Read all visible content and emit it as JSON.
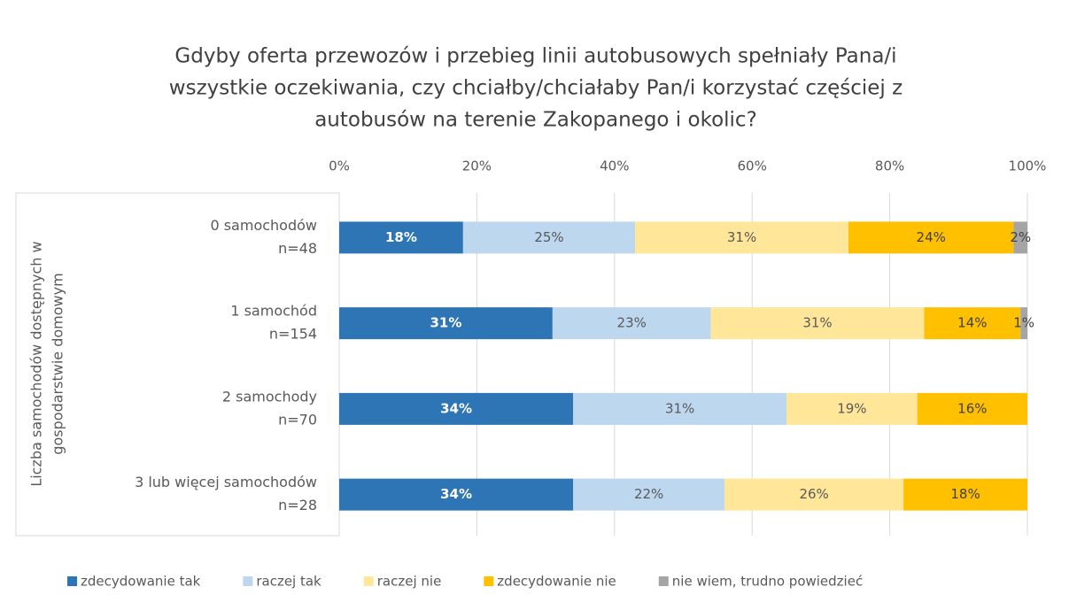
{
  "chart_data": {
    "type": "stacked-barh",
    "title": [
      "Gdyby oferta przewozów i przebieg linii autobusowych spełniały Pana/i",
      "wszystkie oczekiwania, czy chciałby/chciałaby Pan/i korzystać częściej z",
      "autobusów na terenie Zakopanego i okolic?"
    ],
    "y_label": [
      "Liczba samochodów dostępnych w",
      "gospodarstwie domowym"
    ],
    "categories": [
      [
        "0 samochodów",
        "n=48"
      ],
      [
        "1 samochód",
        "n=154"
      ],
      [
        "2 samochody",
        "n=70"
      ],
      [
        "3 lub więcej samochodów",
        "n=28"
      ]
    ],
    "series": [
      {
        "name": "zdecydowanie tak",
        "color": "#2e75b6",
        "label_color": "#ffffff",
        "values": [
          18,
          31,
          34,
          34
        ],
        "value_labels": [
          "18%",
          "31%",
          "34%",
          "34%"
        ]
      },
      {
        "name": "raczej tak",
        "color": "#bdd7ee",
        "label_color": "#595959",
        "values": [
          25,
          23,
          31,
          22
        ],
        "value_labels": [
          "25%",
          "23%",
          "31%",
          "22%"
        ]
      },
      {
        "name": "raczej nie",
        "color": "#ffe699",
        "label_color": "#595959",
        "values": [
          31,
          31,
          19,
          26
        ],
        "value_labels": [
          "31%",
          "31%",
          "19%",
          "26%"
        ]
      },
      {
        "name": "zdecydowanie nie",
        "color": "#ffc000",
        "label_color": "#404040",
        "values": [
          24,
          14,
          16,
          18
        ],
        "value_labels": [
          "24%",
          "14%",
          "16%",
          "18%"
        ]
      },
      {
        "name": "nie wiem, trudno powiedzieć",
        "color": "#a5a5a5",
        "label_color": "#404040",
        "values": [
          2,
          1,
          null,
          null
        ],
        "value_labels": [
          "2%",
          "1%",
          null,
          null
        ]
      }
    ],
    "xlim": [
      0,
      100
    ],
    "xticks": [
      {
        "value": 0,
        "label": "0%"
      },
      {
        "value": 20,
        "label": "20%"
      },
      {
        "value": 40,
        "label": "40%"
      },
      {
        "value": 60,
        "label": "60%"
      },
      {
        "value": 80,
        "label": "80%"
      },
      {
        "value": 100,
        "label": "100%"
      }
    ],
    "grid": true,
    "legend": "bottom"
  }
}
